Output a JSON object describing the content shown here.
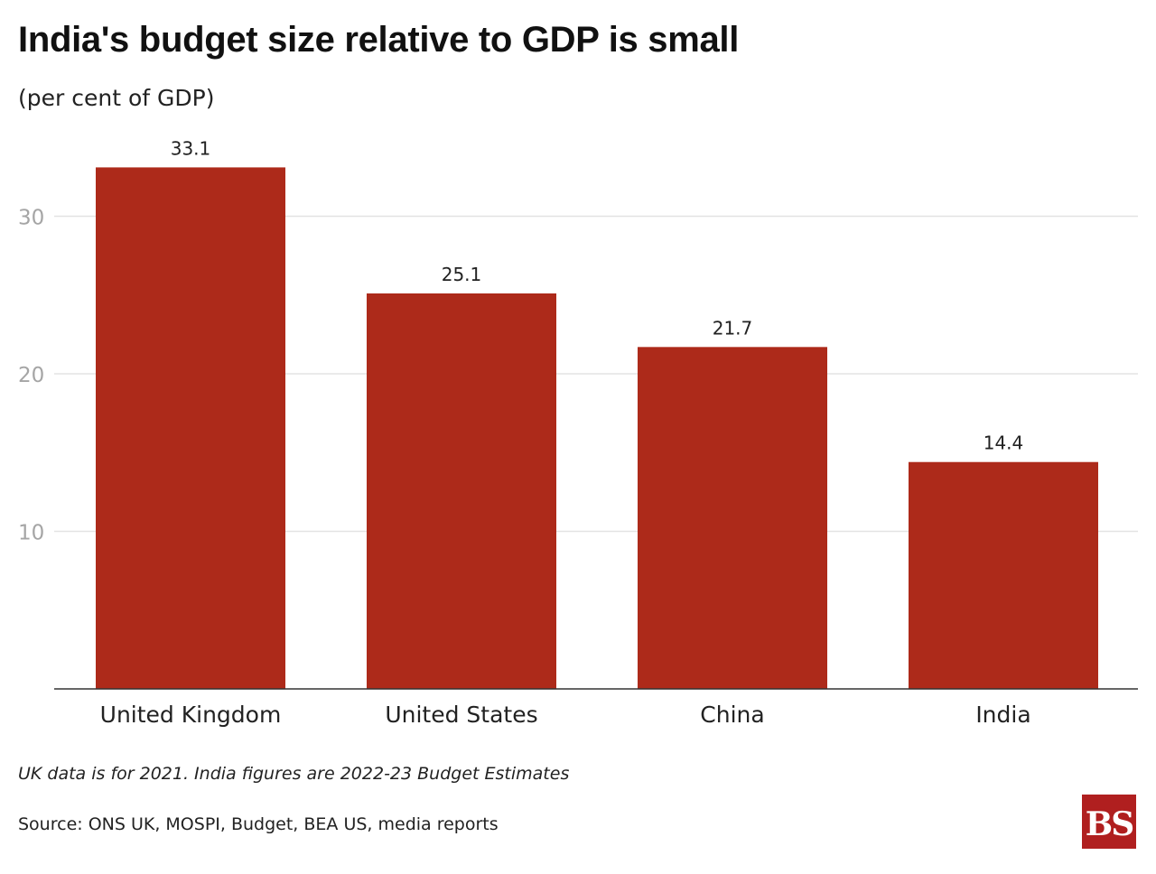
{
  "header": {
    "title": "India's budget size relative to GDP is small",
    "subtitle": "(per cent of GDP)"
  },
  "chart_data": {
    "type": "bar",
    "categories": [
      "United Kingdom",
      "United States",
      "China",
      "India"
    ],
    "values": [
      33.1,
      25.1,
      21.7,
      14.4
    ],
    "value_labels": [
      "33.1",
      "25.1",
      "21.7",
      "14.4"
    ],
    "ylim": [
      0,
      35
    ],
    "yticks": [
      10,
      20,
      30
    ],
    "ytick_labels": [
      "10",
      "20",
      "30"
    ],
    "grid": true,
    "bar_color": "#ad2a1a"
  },
  "footer": {
    "note": "UK data is for 2021. India figures are 2022-23 Budget Estimates",
    "source": "Source: ONS UK, MOSPI, Budget, BEA US, media reports"
  },
  "logo": {
    "text": "BS",
    "background": "#b01f1f"
  }
}
